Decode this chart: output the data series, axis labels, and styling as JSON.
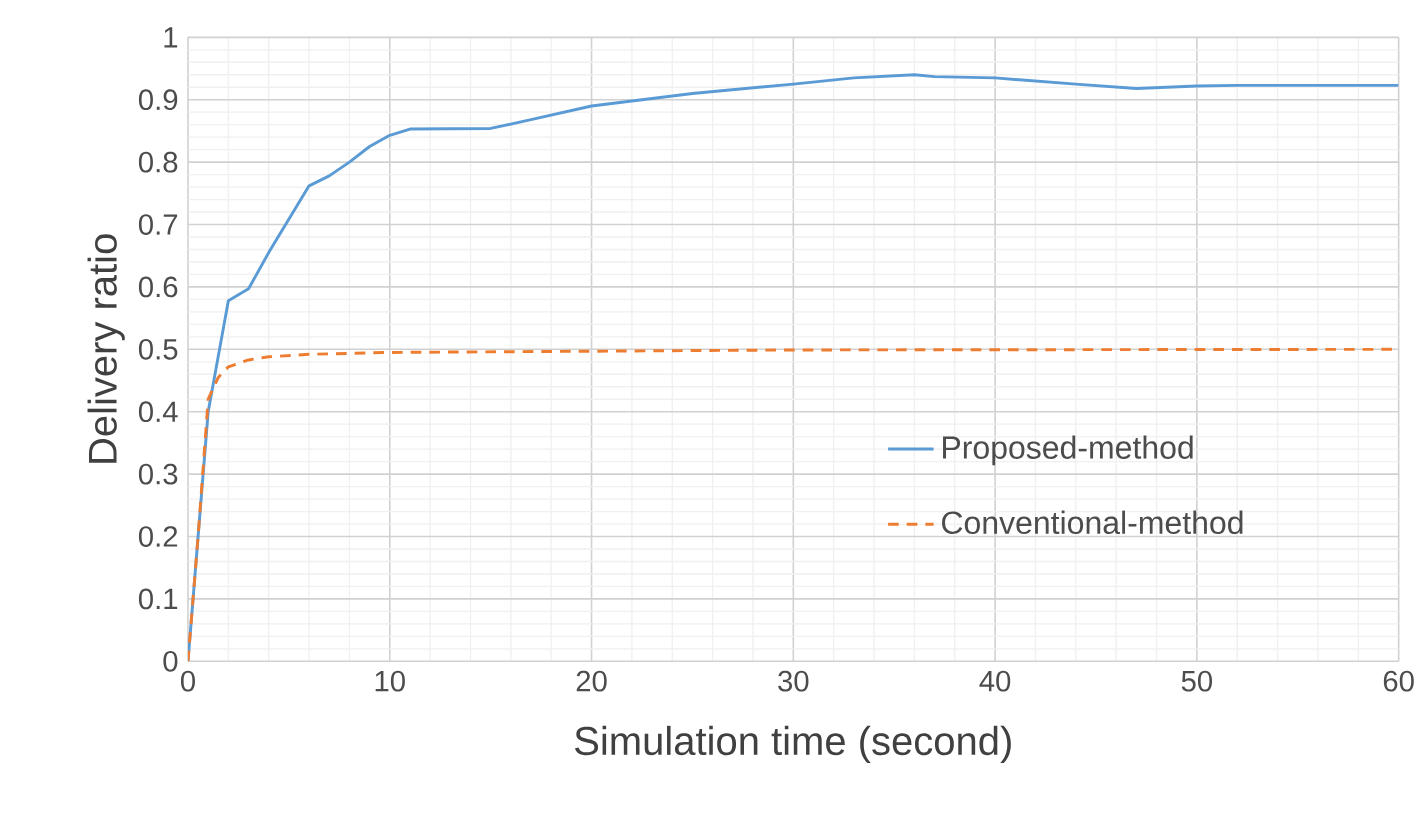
{
  "chart_data": {
    "type": "line",
    "xlabel": "Simulation time (second)",
    "ylabel": "Delivery ratio",
    "xlim": [
      0,
      60
    ],
    "xticks": [
      0,
      10,
      20,
      30,
      40,
      50,
      60
    ],
    "ylim": [
      0,
      1
    ],
    "yticks": [
      0,
      0.1,
      0.2,
      0.3,
      0.4,
      0.5,
      0.6,
      0.7,
      0.8,
      0.9,
      1
    ],
    "grid": true,
    "legend": "right",
    "marker": "none",
    "series": [
      {
        "name": "Proposed-method",
        "color": "#5b9bd5",
        "line_style": "solid",
        "x": [
          0,
          1,
          2,
          3,
          4,
          6,
          7,
          8,
          9,
          10,
          11,
          15,
          17,
          20,
          25,
          30,
          33,
          36,
          37,
          40,
          44,
          47,
          50,
          52,
          60
        ],
        "values": [
          0,
          0.4,
          0.578,
          0.597,
          0.655,
          0.762,
          0.778,
          0.8,
          0.825,
          0.843,
          0.853,
          0.854,
          0.868,
          0.89,
          0.91,
          0.925,
          0.935,
          0.94,
          0.937,
          0.935,
          0.925,
          0.918,
          0.922,
          0.923,
          0.923
        ]
      },
      {
        "name": "Conventional-method",
        "color": "#ed7d31",
        "line_style": "dashed",
        "x": [
          0,
          0.5,
          1,
          1.5,
          2,
          3,
          4,
          6,
          10,
          20,
          30,
          60
        ],
        "values": [
          0,
          0.2,
          0.42,
          0.455,
          0.472,
          0.483,
          0.488,
          0.492,
          0.495,
          0.497,
          0.499,
          0.5
        ]
      }
    ]
  }
}
